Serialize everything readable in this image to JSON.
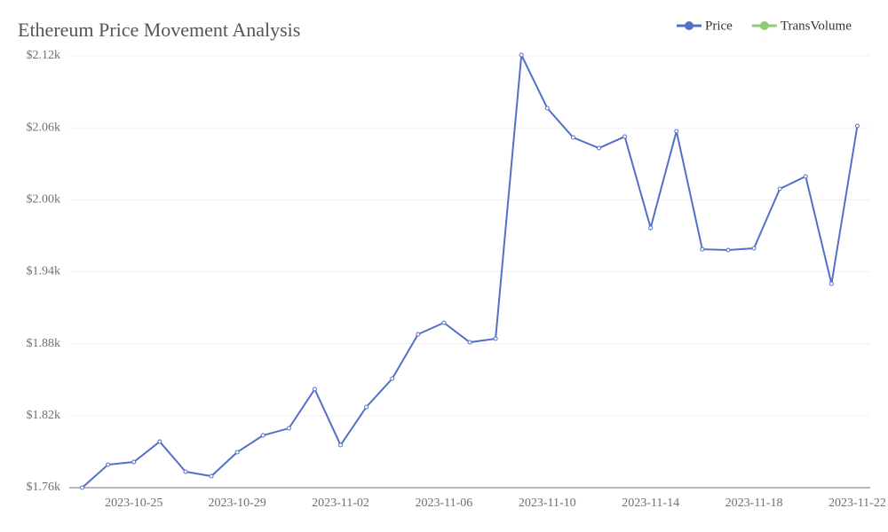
{
  "chart_data": {
    "type": "line",
    "title": "Ethereum Price Movement Analysis",
    "categories": [
      null,
      null,
      "2023-10-25",
      null,
      null,
      null,
      "2023-10-29",
      null,
      null,
      null,
      "2023-11-02",
      null,
      null,
      null,
      "2023-11-06",
      null,
      null,
      null,
      "2023-11-10",
      null,
      null,
      null,
      "2023-11-14",
      null,
      null,
      null,
      "2023-11-18",
      null,
      null,
      null,
      "2023-11-22"
    ],
    "series": [
      {
        "name": "Price",
        "color": "#5470c6",
        "values": [
          1760,
          1779.2,
          1781.4,
          1798.4,
          1773.3,
          1769.6,
          1789.6,
          1803.6,
          1809.5,
          1842.1,
          1795.5,
          1827.3,
          1850.9,
          1887.9,
          1897.5,
          1881.2,
          1884.2,
          2120.7,
          2076.4,
          2052,
          2043.1,
          2052.7,
          1976.6,
          2057.2,
          1958.8,
          1958.1,
          1959.6,
          2009.1,
          2019.5,
          1930,
          2061.6
        ]
      },
      {
        "name": "TransVolume",
        "color": "#91cc75",
        "values": [
          null,
          null,
          null,
          null,
          null,
          null,
          null,
          null,
          null,
          null,
          null,
          null,
          null,
          null,
          null,
          null,
          null,
          null,
          null,
          null,
          null,
          null,
          null,
          null,
          null,
          null,
          null,
          null,
          null,
          null,
          null
        ]
      }
    ],
    "ylim": [
      1760,
      2120
    ],
    "yticks": [
      {
        "value": 1760,
        "label": "$1.76k"
      },
      {
        "value": 1820,
        "label": "$1.82k"
      },
      {
        "value": 1880,
        "label": "$1.88k"
      },
      {
        "value": 1940,
        "label": "$1.94k"
      },
      {
        "value": 2000,
        "label": "$2.00k"
      },
      {
        "value": 2060,
        "label": "$2.06k"
      },
      {
        "value": 2120,
        "label": "$2.12k"
      }
    ],
    "grid": true,
    "legend": "top-right"
  }
}
